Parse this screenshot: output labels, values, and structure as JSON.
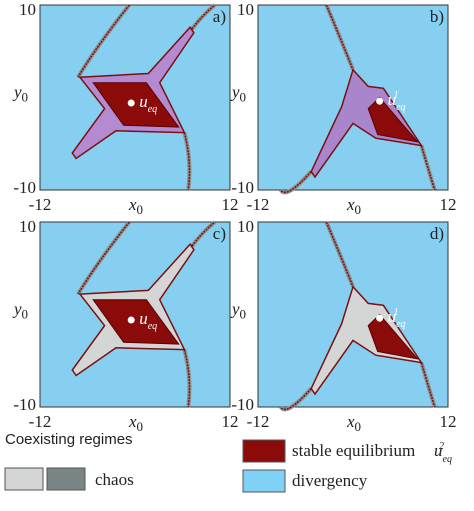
{
  "panels": [
    {
      "label": "a)",
      "x_ticks": [
        "-12",
        "12"
      ],
      "y_ticks": [
        "10",
        "-10"
      ],
      "x_label": "x",
      "x_label_sub": "0",
      "y_label": "y",
      "y_label_sub": "0",
      "point_label": "u",
      "point_label_sub": "eq"
    },
    {
      "label": "b)",
      "x_ticks": [
        "-12",
        "12"
      ],
      "y_ticks": [
        "10",
        "-10"
      ],
      "x_label": "x",
      "x_label_sub": "0",
      "y_label": "y",
      "y_label_sub": "0",
      "point_label": "u",
      "point_label_sub": "eq",
      "point_label_sup": "1"
    },
    {
      "label": "c)",
      "x_ticks": [
        "-12",
        "12"
      ],
      "y_ticks": [
        "10",
        "-10"
      ],
      "x_label": "x",
      "x_label_sub": "0",
      "y_label": "y",
      "y_label_sub": "0",
      "point_label": "u",
      "point_label_sub": "eq"
    },
    {
      "label": "d)",
      "x_ticks": [
        "-12",
        "12"
      ],
      "y_ticks": [
        "10",
        "-10"
      ],
      "x_label": "x",
      "x_label_sub": "0",
      "y_label": "y",
      "y_label_sub": "0",
      "point_label": "u",
      "point_label_sub": "eq",
      "point_label_sup": "1"
    }
  ],
  "legend": {
    "title": "Coexisting regimes",
    "chaos": "chaos",
    "stable": "stable equilibrium",
    "stable_symbol": "u",
    "stable_symbol_sub": "eq",
    "stable_symbol_sup": "2",
    "divergency": "divergency"
  }
}
